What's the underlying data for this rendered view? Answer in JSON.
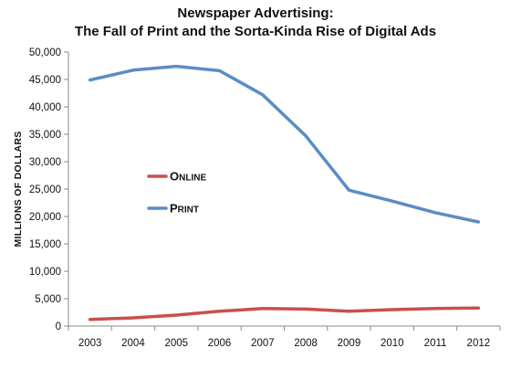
{
  "chart_data": {
    "type": "line",
    "title": "Newspaper Advertising:",
    "subtitle": "The Fall of Print and the Sorta-Kinda Rise of Digital Ads",
    "xlabel": "",
    "ylabel": "MILLIONS OF DOLLARS",
    "ylim": [
      0,
      50000
    ],
    "yticks": [
      0,
      5000,
      10000,
      15000,
      20000,
      25000,
      30000,
      35000,
      40000,
      45000,
      50000
    ],
    "ytick_labels": [
      "0",
      "5,000",
      "10,000",
      "15,000",
      "20,000",
      "25,000",
      "30,000",
      "35,000",
      "40,000",
      "45,000",
      "50,000"
    ],
    "categories": [
      "2003",
      "2004",
      "2005",
      "2006",
      "2007",
      "2008",
      "2009",
      "2010",
      "2011",
      "2012"
    ],
    "grid": false,
    "legend_position": "center-left",
    "series": [
      {
        "name": "Online",
        "color": "#c8504b",
        "values": [
          1200,
          1500,
          2000,
          2700,
          3200,
          3100,
          2700,
          3000,
          3200,
          3300
        ]
      },
      {
        "name": "Print",
        "color": "#5b8cc6",
        "values": [
          44900,
          46700,
          47400,
          46600,
          42200,
          34700,
          24800,
          22800,
          20700,
          19000
        ]
      }
    ]
  }
}
